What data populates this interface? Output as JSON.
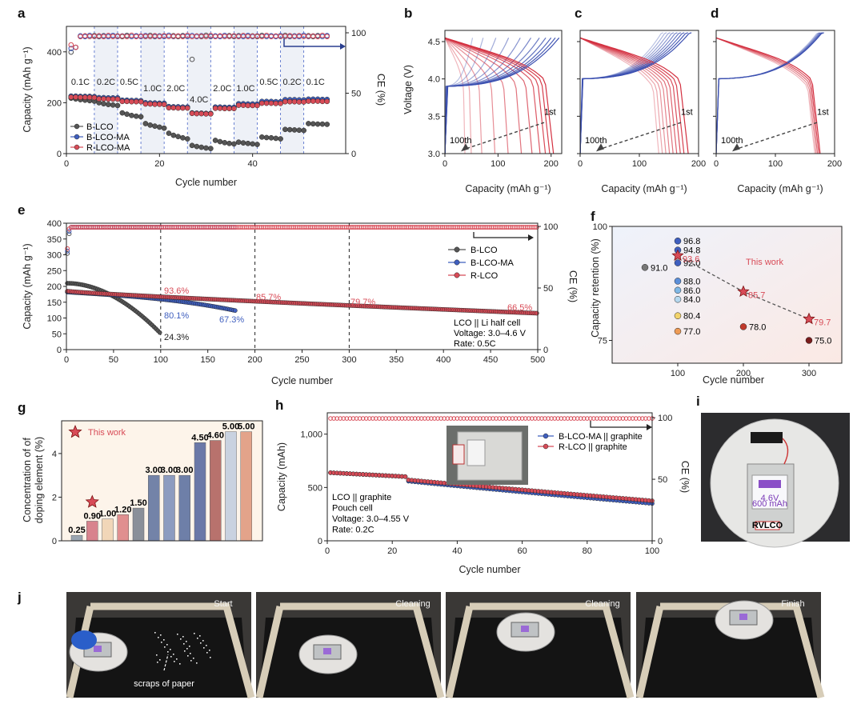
{
  "panel_labels": [
    "a",
    "b",
    "c",
    "d",
    "e",
    "f",
    "g",
    "h",
    "i",
    "j"
  ],
  "chart_data": [
    {
      "id": "a",
      "type": "scatter",
      "xlabel": "Cycle number",
      "ylabel": "Capacity (mAh g⁻¹)",
      "y2label": "CE (%)",
      "xlim": [
        0,
        60
      ],
      "ylim": [
        0,
        500
      ],
      "y2lim": [
        0,
        100
      ],
      "xticks": [
        0,
        20,
        40
      ],
      "yticks": [
        0,
        200,
        400
      ],
      "y2ticks": [
        0,
        50,
        100
      ],
      "rates": [
        "0.1C",
        "0.2C",
        "0.5C",
        "1.0C",
        "2.0C",
        "4.0C",
        "2.0C",
        "1.0C",
        "0.5C",
        "0.2C",
        "0.1C"
      ],
      "rate_boundaries": [
        0,
        6,
        11,
        16,
        21,
        26,
        31,
        36,
        41,
        46,
        51,
        56
      ],
      "series": [
        {
          "name": "B-LCO",
          "color": "#555555",
          "values": [
            218,
            215,
            212,
            210,
            208,
            206,
            200,
            196,
            193,
            191,
            189,
            160,
            155,
            150,
            147,
            145,
            118,
            112,
            108,
            104,
            100,
            80,
            72,
            67,
            62,
            58,
            32,
            28,
            25,
            22,
            20,
            52,
            47,
            43,
            40,
            38,
            45,
            42,
            40,
            38,
            36,
            65,
            63,
            62,
            60,
            58,
            95,
            94,
            93,
            92,
            91,
            118,
            117,
            116,
            116,
            115
          ]
        },
        {
          "name": "B-LCO-MA",
          "color": "#3f5fbf",
          "values": [
            226,
            226,
            225,
            225,
            225,
            224,
            220,
            220,
            219,
            219,
            219,
            210,
            210,
            209,
            209,
            208,
            200,
            199,
            199,
            198,
            198,
            185,
            184,
            184,
            183,
            183,
            160,
            159,
            159,
            158,
            158,
            183,
            183,
            182,
            182,
            182,
            196,
            196,
            195,
            195,
            195,
            205,
            205,
            205,
            204,
            204,
            212,
            212,
            212,
            211,
            211,
            214,
            214,
            214,
            213,
            213
          ]
        },
        {
          "name": "R-LCO-MA",
          "color": "#d84b57",
          "values": [
            222,
            222,
            221,
            221,
            221,
            220,
            215,
            215,
            214,
            214,
            214,
            205,
            205,
            204,
            204,
            204,
            195,
            195,
            194,
            194,
            193,
            180,
            180,
            179,
            179,
            179,
            158,
            157,
            157,
            156,
            156,
            178,
            178,
            177,
            177,
            177,
            190,
            190,
            189,
            189,
            189,
            198,
            198,
            198,
            197,
            197,
            204,
            204,
            204,
            203,
            203,
            206,
            206,
            206,
            205,
            205
          ]
        }
      ]
    },
    {
      "id": "b",
      "type": "line",
      "xlabel": "Capacity (mAh g⁻¹)",
      "ylabel": "Voltage (V)",
      "xlim": [
        0,
        220
      ],
      "ylim": [
        3.0,
        4.65
      ],
      "xticks": [
        0,
        100,
        200
      ],
      "yticks": [
        3.0,
        3.5,
        4.0,
        4.5
      ],
      "annotations": [
        "1st",
        "100th"
      ],
      "discharge_capacities": [
        205,
        198,
        190,
        180,
        165,
        145,
        120,
        95,
        70,
        50,
        38
      ],
      "charge_capacities": [
        215,
        208,
        200,
        190,
        178,
        162,
        142,
        120,
        96,
        72,
        52
      ],
      "plateau_v": 3.9
    },
    {
      "id": "c",
      "type": "line",
      "xlabel": "Capacity (mAh g⁻¹)",
      "ylabel": "Voltage (V)",
      "xlim": [
        0,
        200
      ],
      "ylim": [
        3.0,
        4.65
      ],
      "xticks": [
        0,
        100,
        200
      ],
      "yticks": [
        3.0,
        3.5,
        4.0,
        4.5
      ],
      "annotations": [
        "1st",
        "100th"
      ],
      "discharge_capacities": [
        183,
        176,
        170,
        164,
        158,
        152,
        146,
        140,
        134
      ],
      "charge_capacities": [
        188,
        182,
        176,
        170,
        164,
        158,
        152,
        146,
        140
      ],
      "plateau_v": 4.0
    },
    {
      "id": "d",
      "type": "line",
      "xlabel": "Capacity (mAh g⁻¹)",
      "ylabel": "Voltage (V)",
      "xlim": [
        0,
        200
      ],
      "ylim": [
        3.0,
        4.65
      ],
      "xticks": [
        0,
        100,
        200
      ],
      "yticks": [
        3.0,
        3.5,
        4.0,
        4.5
      ],
      "annotations": [
        "1st",
        "100th"
      ],
      "discharge_capacities": [
        176,
        174,
        172,
        170,
        168
      ],
      "charge_capacities": [
        182,
        180,
        178,
        176,
        174
      ],
      "plateau_v": 4.0
    },
    {
      "id": "e",
      "type": "line",
      "xlabel": "Cycle number",
      "ylabel": "Capacity (mAh g⁻¹)",
      "y2label": "CE (%)",
      "xlim": [
        0,
        500
      ],
      "ylim": [
        0,
        400
      ],
      "y2lim": [
        0,
        100
      ],
      "xticks": [
        0,
        50,
        100,
        150,
        200,
        250,
        300,
        350,
        400,
        450,
        500
      ],
      "yticks": [
        0,
        50,
        100,
        150,
        200,
        250,
        300,
        350,
        400
      ],
      "y2ticks": [
        0,
        50,
        100
      ],
      "series": [
        {
          "name": "B-LCO",
          "color": "#555555",
          "start": 210,
          "end": 51,
          "cycles": 100
        },
        {
          "name": "B-LCO-MA",
          "color": "#3f5fbf",
          "start": 182,
          "end": 123,
          "cycles": 180
        },
        {
          "name": "R-LCO",
          "color": "#d84b57",
          "start": 185,
          "end": 115,
          "cycles": 500
        }
      ],
      "retention_labels": [
        "93.6%",
        "80.1%",
        "67.3%",
        "24.3%",
        "85.7%",
        "79.7%",
        "66.5%"
      ],
      "notes": [
        "LCO || Li half cell",
        "Voltage: 3.0–4.6 V",
        "Rate: 0.5C"
      ],
      "vlines": [
        100,
        200,
        300
      ]
    },
    {
      "id": "f",
      "type": "scatter",
      "xlabel": "Cycle number",
      "ylabel": "Capacity retention (%)",
      "xlim": [
        0,
        350
      ],
      "ylim": [
        70,
        100
      ],
      "xticks": [
        100,
        200,
        300
      ],
      "yticks": [
        75,
        100
      ],
      "this_work_label": "This work",
      "points": [
        {
          "x": 50,
          "y": 91.0,
          "label": "91.0",
          "color": "#777777"
        },
        {
          "x": 100,
          "y": 96.8,
          "label": "96.8",
          "color": "#3f5fbf"
        },
        {
          "x": 100,
          "y": 94.8,
          "label": "94.8",
          "color": "#3f5fbf"
        },
        {
          "x": 100,
          "y": 92.0,
          "label": "92.0",
          "color": "#3f5fbf"
        },
        {
          "x": 100,
          "y": 88.0,
          "label": "88.0",
          "color": "#5b8fd9"
        },
        {
          "x": 100,
          "y": 86.0,
          "label": "86.0",
          "color": "#7fb8e6"
        },
        {
          "x": 100,
          "y": 84.0,
          "label": "84.0",
          "color": "#b5d8ef"
        },
        {
          "x": 100,
          "y": 80.4,
          "label": "80.4",
          "color": "#f2d36b"
        },
        {
          "x": 100,
          "y": 77.0,
          "label": "77.0",
          "color": "#ee9b55"
        },
        {
          "x": 200,
          "y": 78.0,
          "label": "78.0",
          "color": "#c0392b"
        },
        {
          "x": 300,
          "y": 75.0,
          "label": "75.0",
          "color": "#7a1c1c"
        }
      ],
      "stars": [
        {
          "x": 100,
          "y": 93.6,
          "label": "93.6"
        },
        {
          "x": 200,
          "y": 85.7,
          "label": "85.7"
        },
        {
          "x": 300,
          "y": 79.7,
          "label": "79.7"
        }
      ]
    },
    {
      "id": "g",
      "type": "bar",
      "ylabel": "Concentration of doping element (%)",
      "ylim": [
        0,
        5.5
      ],
      "yticks": [
        0,
        2,
        4
      ],
      "this_work_label": "This work",
      "values": [
        0.25,
        0.9,
        1.0,
        1.2,
        1.5,
        3.0,
        3.0,
        3.0,
        4.5,
        4.6,
        5.0,
        5.0
      ],
      "labels": [
        "0.25",
        "0.90",
        "1.00",
        "1.20",
        "1.50",
        "3.00",
        "3.00",
        "3.00",
        "4.50",
        "4.60",
        "5.00",
        "5.00"
      ],
      "colors": [
        "#9aa5b1",
        "#d8838d",
        "#f1d6b8",
        "#e08f8f",
        "#8a8f99",
        "#7383a8",
        "#8d9cc0",
        "#6e7fa8",
        "#6a78a8",
        "#b8726d",
        "#c9d2e0",
        "#e3a38a"
      ],
      "this_work_index": 1
    },
    {
      "id": "h",
      "type": "scatter",
      "xlabel": "Cycle number",
      "ylabel": "Capacity (mAh)",
      "y2label": "CE (%)",
      "xlim": [
        0,
        100
      ],
      "ylim": [
        0,
        1200
      ],
      "y2lim": [
        0,
        104
      ],
      "xticks": [
        0,
        20,
        40,
        60,
        80,
        100
      ],
      "yticks": [
        "0",
        "500",
        "1,000"
      ],
      "y2ticks": [
        0,
        50,
        100
      ],
      "series": [
        {
          "name": "B-LCO-MA || graphite",
          "color": "#3f5fbf",
          "start": 640,
          "end": 350
        },
        {
          "name": "R-LCO || graphite",
          "color": "#d84b57",
          "start": 640,
          "end": 375
        }
      ],
      "notes": [
        "LCO || graphite",
        "Pouch cell",
        "Voltage: 3.0–4.55 V",
        "Rate: 0.2C"
      ]
    }
  ],
  "photos": {
    "pouch_text": [
      "4.6V",
      "600 mAh",
      "RVLCO"
    ],
    "j_captions": [
      "Start",
      "Cleaning",
      "Cleaning",
      "Finish"
    ],
    "scraps_label": "scraps of paper"
  }
}
